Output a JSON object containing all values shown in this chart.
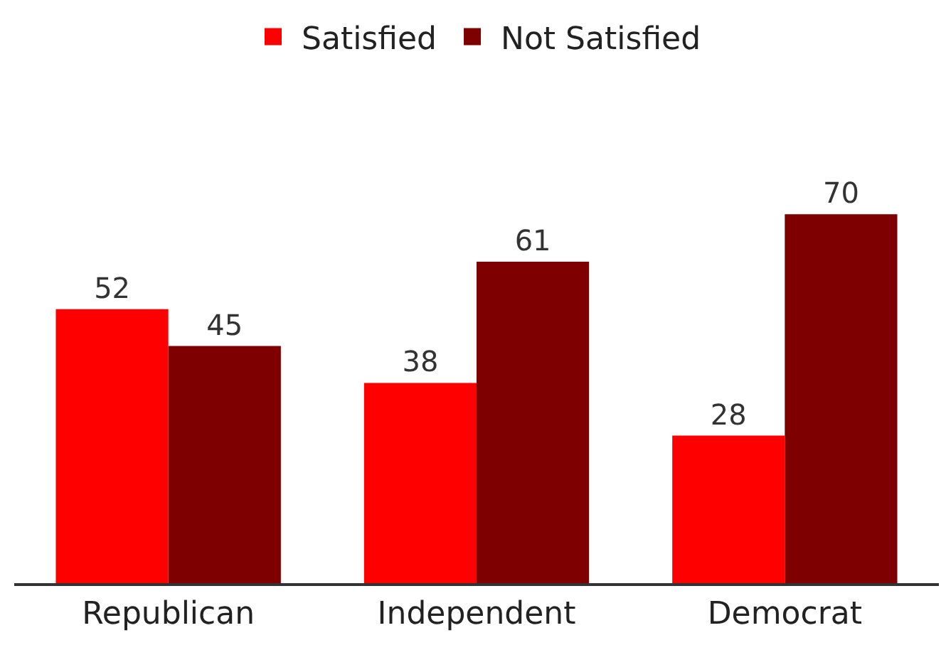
{
  "chart_data": {
    "type": "bar",
    "categories": [
      "Republican",
      "Independent",
      "Democrat"
    ],
    "series": [
      {
        "name": "Satisfied",
        "color": "#ff0000",
        "values": [
          52,
          38,
          28
        ]
      },
      {
        "name": "Not Satisfied",
        "color": "#7f0000",
        "values": [
          45,
          61,
          70
        ]
      }
    ],
    "data_labels": true,
    "legend": "top"
  }
}
